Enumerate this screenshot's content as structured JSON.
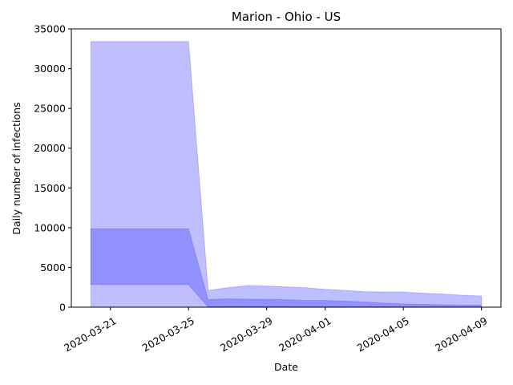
{
  "chart_data": {
    "type": "area",
    "title": "Marion - Ohio - US",
    "xlabel": "Date",
    "ylabel": "Daily number of infections",
    "x": [
      "2020-03-20",
      "2020-03-21",
      "2020-03-22",
      "2020-03-23",
      "2020-03-24",
      "2020-03-25",
      "2020-03-26",
      "2020-03-27",
      "2020-03-28",
      "2020-03-29",
      "2020-03-30",
      "2020-03-31",
      "2020-04-01",
      "2020-04-02",
      "2020-04-03",
      "2020-04-04",
      "2020-04-05",
      "2020-04-06",
      "2020-04-07",
      "2020-04-08",
      "2020-04-09"
    ],
    "x_tick_labels": [
      "2020-03-21",
      "2020-03-25",
      "2020-03-29",
      "2020-04-01",
      "2020-04-05",
      "2020-04-09"
    ],
    "x_tick_dates": [
      "2020-03-21",
      "2020-03-25",
      "2020-03-29",
      "2020-04-01",
      "2020-04-05",
      "2020-04-09"
    ],
    "ylim": [
      0,
      35000
    ],
    "y_ticks": [
      0,
      5000,
      10000,
      15000,
      20000,
      25000,
      30000,
      35000
    ],
    "grid": false,
    "bands": [
      {
        "color": "#8080ff",
        "opacity": 0.5,
        "lower": [
          0,
          0,
          0,
          0,
          0,
          0,
          0,
          0,
          0,
          0,
          0,
          0,
          0,
          0,
          0,
          0,
          0,
          0,
          0,
          0,
          0
        ],
        "upper": [
          33400,
          33400,
          33400,
          33400,
          33400,
          33400,
          2100,
          2450,
          2700,
          2650,
          2550,
          2450,
          2250,
          2100,
          1950,
          1900,
          1900,
          1750,
          1650,
          1500,
          1400
        ]
      },
      {
        "color": "#6666ff",
        "opacity": 0.5,
        "lower": [
          2850,
          2850,
          2850,
          2850,
          2850,
          2850,
          50,
          60,
          60,
          60,
          60,
          50,
          50,
          40,
          40,
          40,
          30,
          30,
          30,
          25,
          25
        ],
        "upper": [
          9850,
          9850,
          9850,
          9850,
          9850,
          9850,
          950,
          1050,
          1000,
          1000,
          950,
          850,
          850,
          750,
          650,
          500,
          400,
          350,
          300,
          250,
          250
        ]
      }
    ]
  }
}
